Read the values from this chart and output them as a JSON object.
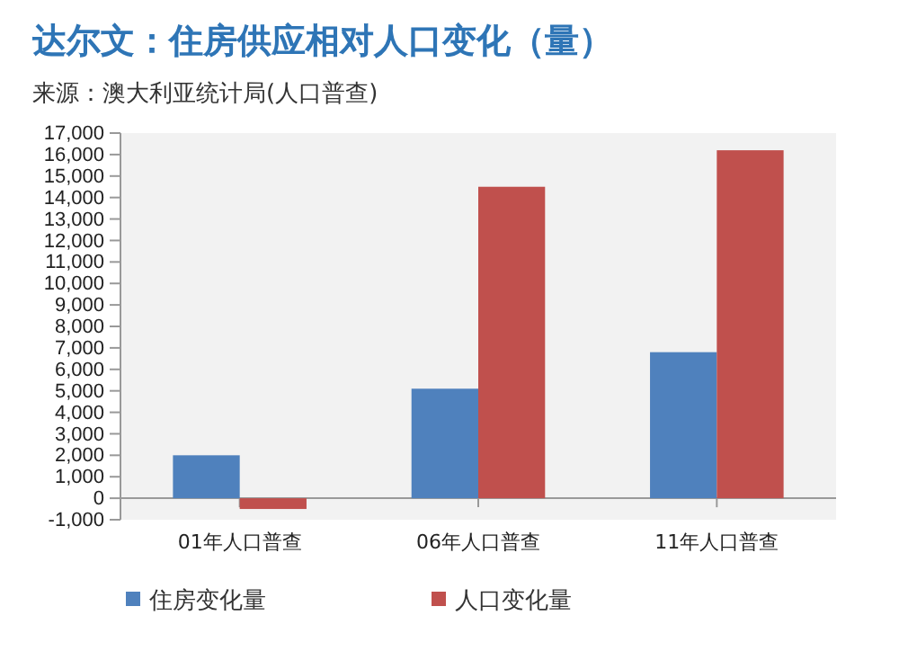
{
  "chart_data": {
    "type": "bar",
    "title": "达尔文：住房供应相对人口变化（量）",
    "annotations": [
      "来源：澳大利亚统计局(人口普查)"
    ],
    "categories": [
      "01年人口普查",
      "06年人口普查",
      "11年人口普查"
    ],
    "series": [
      {
        "name": "住房变化量",
        "color": "#4f81bd",
        "values": [
          2000,
          5100,
          6800
        ]
      },
      {
        "name": "人口变化量",
        "color": "#c0504d",
        "values": [
          -500,
          14500,
          16200
        ]
      }
    ],
    "ylim": [
      -1000,
      17000
    ],
    "yticks": [
      {
        "value": -1000,
        "label": "-1,000"
      },
      0,
      {
        "value": 1000,
        "label": "1,000"
      },
      {
        "value": 2000,
        "label": "2,000"
      },
      {
        "value": 3000,
        "label": "3,000"
      },
      {
        "value": 4000,
        "label": "4,000"
      },
      {
        "value": 5000,
        "label": "5,000"
      },
      {
        "value": 6000,
        "label": "6,000"
      },
      {
        "value": 7000,
        "label": "7,000"
      },
      {
        "value": 8000,
        "label": "8,000"
      },
      {
        "value": 9000,
        "label": "9,000"
      },
      {
        "value": 10000,
        "label": "10,000"
      },
      {
        "value": 11000,
        "label": "11,000"
      },
      {
        "value": 12000,
        "label": "12,000"
      },
      {
        "value": 13000,
        "label": "13,000"
      },
      {
        "value": 14000,
        "label": "14,000"
      },
      {
        "value": 15000,
        "label": "15,000"
      },
      {
        "value": 16000,
        "label": "16,000"
      },
      {
        "value": 17000,
        "label": "17,000"
      }
    ],
    "legend": "bottom"
  }
}
